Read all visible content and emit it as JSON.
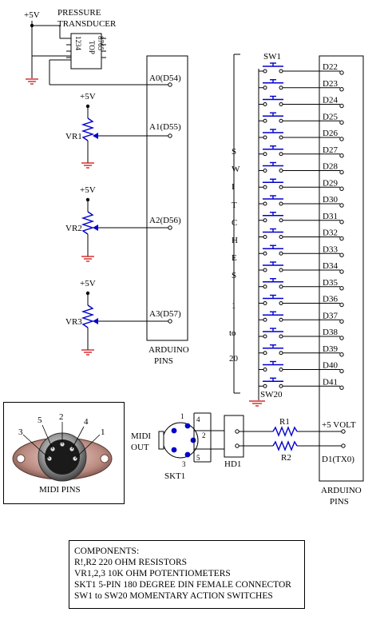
{
  "transducer": {
    "title1": "PRESSURE",
    "title2": "TRANSDUCER",
    "supply": "+5V",
    "top_label": "TOP",
    "pins_left": "1234",
    "pins_right": "8765"
  },
  "analog": {
    "pins": [
      "A0(D54)",
      "A1(D55)",
      "A2(D56)",
      "A3(D57)"
    ],
    "pots": [
      {
        "name": "VR1",
        "supply": "+5V"
      },
      {
        "name": "VR2",
        "supply": "+5V"
      },
      {
        "name": "VR3",
        "supply": "+5V"
      }
    ],
    "arduino_label1": "ARDUINO",
    "arduino_label2": "PINS"
  },
  "switches": {
    "first": "SW1",
    "last": "SW20",
    "vertical_label": [
      "S",
      "W",
      "I",
      "T",
      "C",
      "H",
      "E",
      "S",
      "1",
      "to",
      "20"
    ],
    "pins": [
      "D22",
      "D23",
      "D24",
      "D25",
      "D26",
      "D27",
      "D28",
      "D29",
      "D30",
      "D31",
      "D32",
      "D33",
      "D34",
      "D35",
      "D36",
      "D37",
      "D38",
      "D39",
      "D40",
      "D41"
    ]
  },
  "digital": {
    "power_pin": "+5 VOLT",
    "tx_pin": "D1(TX0)",
    "arduino_label1": "ARDUINO",
    "arduino_label2": "PINS"
  },
  "midi": {
    "out1": "MIDI",
    "out2": "OUT",
    "socket": "SKT1",
    "header": "HD1",
    "r1": "R1",
    "r2": "R2",
    "skt_pins": [
      "1",
      "4",
      "2",
      "5",
      "3"
    ],
    "photo_pins": [
      "3",
      "5",
      "2",
      "4",
      "1"
    ],
    "photo_caption": "MIDI PINS"
  },
  "components": {
    "heading": "COMPONENTS:",
    "lines": [
      "R!,R2 220 OHM RESISTORS",
      "VR1,2,3  10K OHM POTENTIOMETERS",
      "SKT1  5-PIN 180 DEGREE DIN FEMALE CONNECTOR",
      "SW1 to SW20 MOMENTARY ACTION SWITCHES"
    ]
  },
  "colors": {
    "component": "#0000cc",
    "ground": "#cc0000",
    "wire": "#000000"
  }
}
